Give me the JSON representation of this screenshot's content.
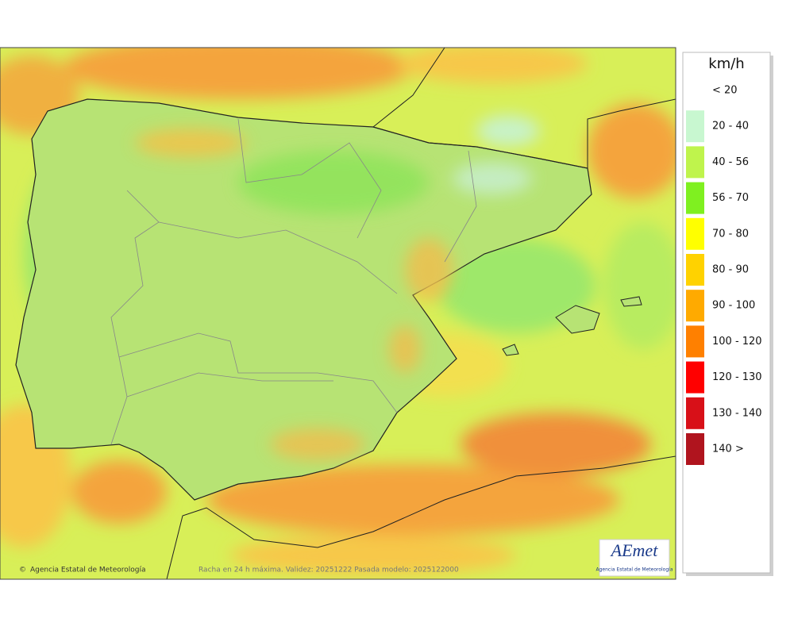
{
  "legend": {
    "unit": "km/h",
    "items": [
      {
        "label": "< 20"
      },
      {
        "label": "20 - 40",
        "color": "#c8f7d0"
      },
      {
        "label": "40 - 56",
        "color": "#bff44c"
      },
      {
        "label": "56 - 70",
        "color": "#7ff020"
      },
      {
        "label": "70 - 80",
        "color": "#ffff00"
      },
      {
        "label": "80 - 90",
        "color": "#ffd200"
      },
      {
        "label": "90 - 100",
        "color": "#ffaa00"
      },
      {
        "label": "100 - 120",
        "color": "#ff8000"
      },
      {
        "label": "120 - 130",
        "color": "#ff0000"
      },
      {
        "label": "130 - 140",
        "color": "#d81018"
      },
      {
        "label": "140 >",
        "color": "#b0141e"
      }
    ]
  },
  "footer": {
    "credit": "Agencia Estatal de Meteorología",
    "caption": "Racha en 24 h máxima. Validez: 20251222 Pasada modelo: 2025122000"
  },
  "logo": {
    "name": "AEmet",
    "subtitle": "Agencia Estatal de Meteorología"
  }
}
